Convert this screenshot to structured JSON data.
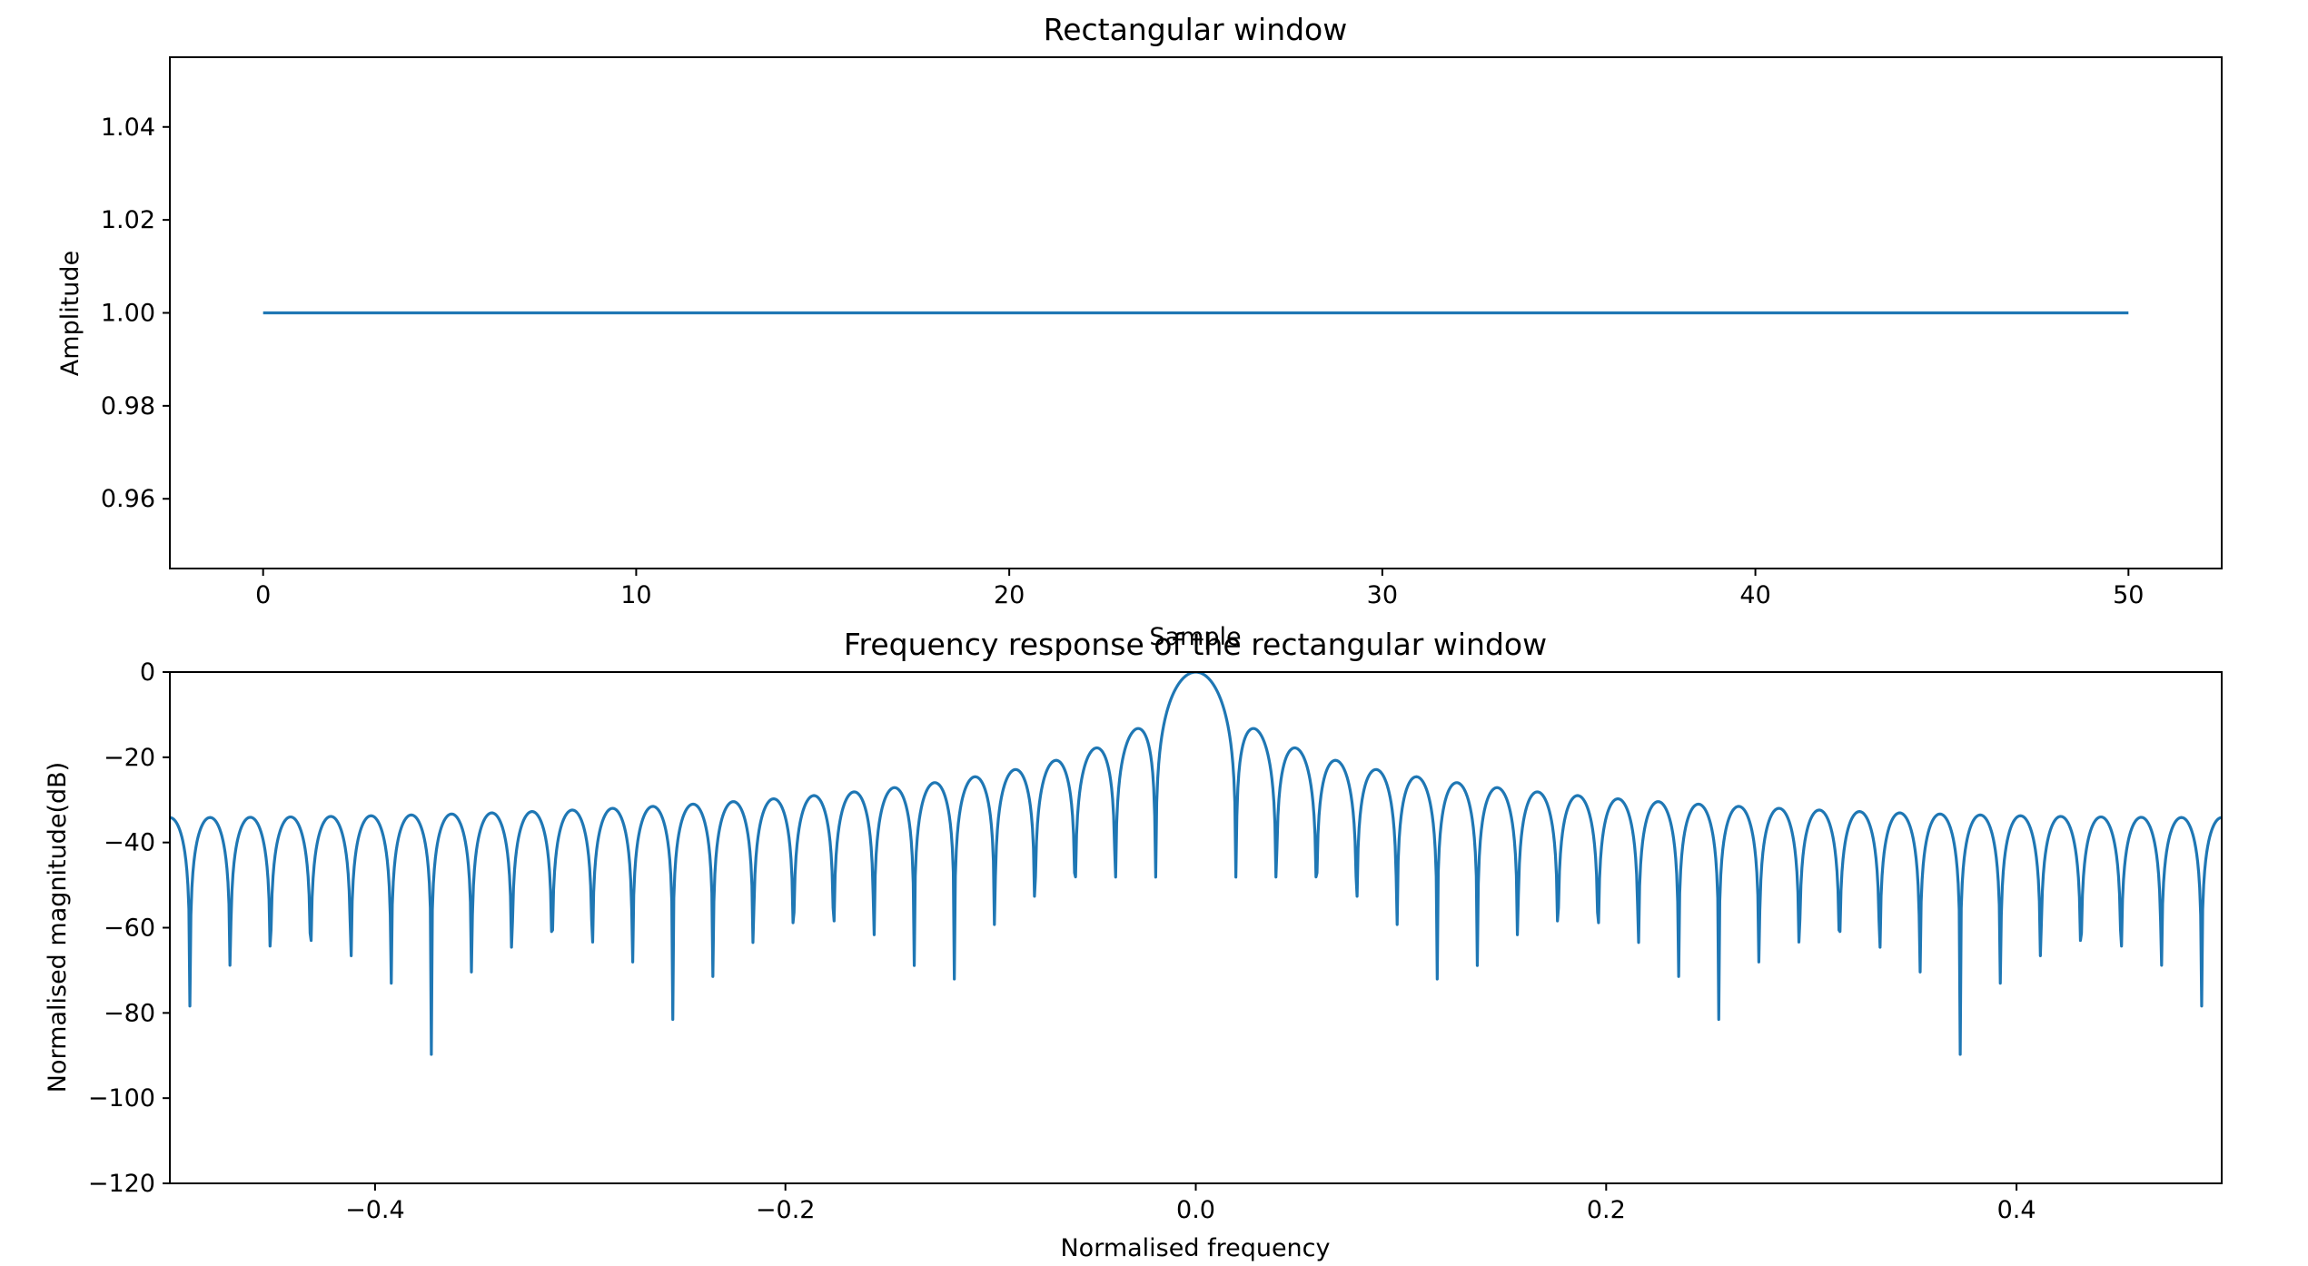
{
  "chart_data": [
    {
      "type": "line",
      "title": "Rectangular window",
      "xlabel": "Sample",
      "ylabel": "Amplitude",
      "xlim": [
        -2.5,
        52.5
      ],
      "ylim": [
        0.945,
        1.055
      ],
      "xticks": [
        0,
        10,
        20,
        30,
        40,
        50
      ],
      "xtick_labels": [
        "0",
        "10",
        "20",
        "30",
        "40",
        "50"
      ],
      "yticks": [
        0.96,
        0.98,
        1.0,
        1.02,
        1.04
      ],
      "ytick_labels": [
        "0.96",
        "0.98",
        "1.00",
        "1.02",
        "1.04"
      ],
      "grid": false,
      "series": [
        {
          "n_samples": 51,
          "constant_value": 1.0,
          "color": "#1f77b4"
        }
      ]
    },
    {
      "type": "line",
      "title": "Frequency response of the rectangular window",
      "xlabel": "Normalised frequency",
      "ylabel": "Normalised magnitude(dB)",
      "xlim": [
        -0.5,
        0.5
      ],
      "ylim": [
        -120,
        0
      ],
      "xticks": [
        -0.4,
        -0.2,
        0.0,
        0.2,
        0.4
      ],
      "xtick_labels": [
        "−0.4",
        "−0.2",
        "0.0",
        "0.2",
        "0.4"
      ],
      "yticks": [
        -120,
        -100,
        -80,
        -60,
        -40,
        -20,
        0
      ],
      "ytick_labels": [
        "−120",
        "−100",
        "−80",
        "−60",
        "−40",
        "−20",
        "0"
      ],
      "grid": false,
      "series": [
        {
          "window_length": 51,
          "fft_size": 2048,
          "normalised_to_peak_dB": 0,
          "color": "#1f77b4"
        }
      ]
    }
  ]
}
